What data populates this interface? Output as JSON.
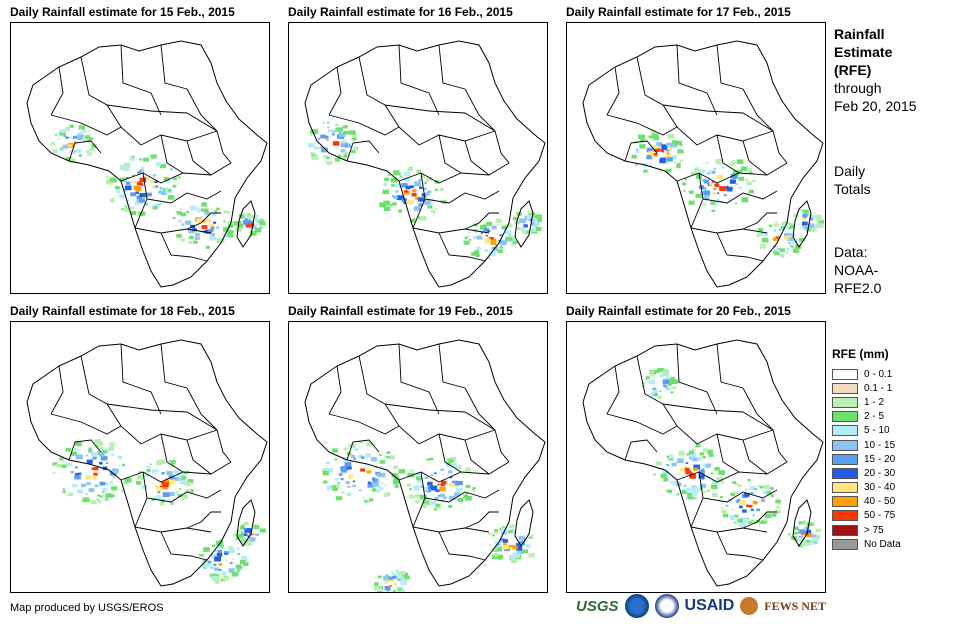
{
  "panels": [
    {
      "title": "Daily Rainfall estimate for 15 Feb., 2015"
    },
    {
      "title": "Daily Rainfall estimate for 16 Feb., 2015"
    },
    {
      "title": "Daily Rainfall estimate for 17 Feb., 2015"
    },
    {
      "title": "Daily Rainfall estimate for 18 Feb., 2015"
    },
    {
      "title": "Daily Rainfall estimate for 19 Feb., 2015"
    },
    {
      "title": "Daily Rainfall estimate for 20 Feb., 2015"
    }
  ],
  "side": {
    "title_1": "Rainfall",
    "title_2": "Estimate",
    "title_3": "(RFE)",
    "through_1": "through",
    "through_2": "Feb 20, 2015",
    "daily_1": "Daily",
    "daily_2": "Totals",
    "data_1": "Data:",
    "data_2": "NOAA-",
    "data_3": "RFE2.0"
  },
  "legend": {
    "title": "RFE (mm)",
    "items": [
      {
        "label": "0 - 0.1",
        "color": "#ffffff"
      },
      {
        "label": "0.1 - 1",
        "color": "#f2dcc0"
      },
      {
        "label": "1 - 2",
        "color": "#b8f0b0"
      },
      {
        "label": "2 - 5",
        "color": "#6ee06e"
      },
      {
        "label": "5 - 10",
        "color": "#b4ecf8"
      },
      {
        "label": "10 - 15",
        "color": "#8cc4f4"
      },
      {
        "label": "15 - 20",
        "color": "#5a9ef0"
      },
      {
        "label": "20 - 30",
        "color": "#2060e8"
      },
      {
        "label": "30 - 40",
        "color": "#ffe680"
      },
      {
        "label": "40 - 50",
        "color": "#ffa000"
      },
      {
        "label": "50 - 75",
        "color": "#ff3800"
      },
      {
        "label": "> 75",
        "color": "#a01010"
      },
      {
        "label": "No Data",
        "color": "#999999"
      }
    ]
  },
  "footer": {
    "credit": "Map produced by USGS/EROS"
  },
  "logos": {
    "usgs": "USGS",
    "usaid": "USAID",
    "fews": "FEWS NET"
  }
}
